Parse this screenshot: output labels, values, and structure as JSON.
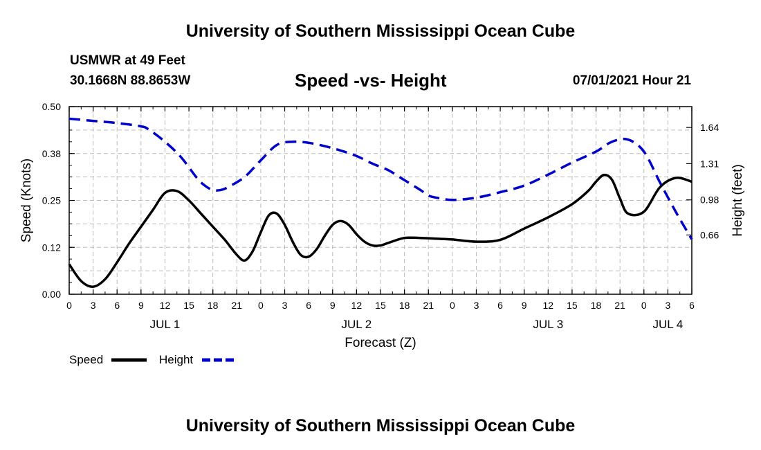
{
  "page": {
    "title_top": "University of Southern Mississippi Ocean Cube",
    "title_bottom": "University of Southern Mississippi Ocean Cube",
    "station": "USMWR at 49 Feet",
    "coords": "30.1668N  88.8653W",
    "chart_title": "Speed -vs- Height",
    "datetime": "07/01/2021 Hour 21"
  },
  "legend": {
    "speed_label": "Speed",
    "height_label": "Height"
  },
  "colors": {
    "speed": "#000000",
    "height": "#0000cc",
    "grid": "#bbbbbb"
  },
  "chart_data": {
    "type": "line",
    "title": "Speed -vs- Height",
    "xlabel": "Forecast (Z)",
    "ylabel": "Speed (Knots)",
    "y2label": "Height (feet)",
    "xlim": [
      0,
      78
    ],
    "ylim": [
      0,
      0.5
    ],
    "y2lim": [
      0.12,
      1.83
    ],
    "x_ticks": [
      0,
      3,
      6,
      9,
      12,
      15,
      18,
      21,
      24,
      27,
      30,
      33,
      36,
      39,
      42,
      45,
      48,
      51,
      54,
      57,
      60,
      63,
      66,
      69,
      72,
      75,
      78
    ],
    "x_tick_labels": [
      "0",
      "3",
      "6",
      "9",
      "12",
      "15",
      "18",
      "21",
      "0",
      "3",
      "6",
      "9",
      "12",
      "15",
      "18",
      "21",
      "0",
      "3",
      "6",
      "9",
      "12",
      "15",
      "18",
      "21",
      "0",
      "3",
      "6"
    ],
    "date_labels": [
      {
        "x": 12,
        "label": "JUL 1"
      },
      {
        "x": 36,
        "label": "JUL 2"
      },
      {
        "x": 60,
        "label": "JUL 3"
      },
      {
        "x": 75,
        "label": "JUL 4"
      }
    ],
    "y_ticks": [
      0,
      0.125,
      0.25,
      0.375,
      0.5
    ],
    "y_tick_labels": [
      "0.00",
      "0.12",
      "0.25",
      "0.38",
      "0.50"
    ],
    "y2_ticks": [
      0.66,
      0.98,
      1.31,
      1.64
    ],
    "y2_tick_labels": [
      "0.66",
      "0.98",
      "1.31",
      "1.64"
    ],
    "series": [
      {
        "name": "Speed",
        "axis": "left",
        "x": [
          0,
          1.5,
          3,
          4.5,
          6,
          7.5,
          9,
          10.5,
          12,
          13.5,
          15,
          16.5,
          18,
          19.5,
          21,
          22,
          23,
          24,
          25,
          26,
          27,
          28,
          29,
          30,
          31,
          32,
          33,
          34,
          35,
          36,
          37,
          38,
          39,
          40,
          42,
          44,
          46,
          48,
          51,
          54,
          57,
          60,
          63,
          65,
          66,
          67,
          68,
          69,
          70,
          72,
          74,
          76,
          78
        ],
        "values": [
          0.08,
          0.035,
          0.02,
          0.04,
          0.085,
          0.135,
          0.18,
          0.225,
          0.27,
          0.275,
          0.25,
          0.215,
          0.18,
          0.145,
          0.105,
          0.09,
          0.115,
          0.165,
          0.21,
          0.215,
          0.185,
          0.14,
          0.105,
          0.1,
          0.12,
          0.155,
          0.185,
          0.195,
          0.185,
          0.16,
          0.14,
          0.13,
          0.13,
          0.137,
          0.15,
          0.15,
          0.148,
          0.146,
          0.14,
          0.145,
          0.175,
          0.205,
          0.24,
          0.275,
          0.3,
          0.318,
          0.305,
          0.255,
          0.215,
          0.22,
          0.285,
          0.31,
          0.3
        ]
      },
      {
        "name": "Height",
        "axis": "right",
        "x": [
          0,
          3,
          6,
          9,
          10,
          12,
          14,
          16,
          17,
          18,
          19,
          20,
          22,
          24,
          26,
          28,
          30,
          32,
          34,
          36,
          38,
          40,
          42,
          44,
          45,
          46,
          48,
          51,
          54,
          57,
          60,
          63,
          66,
          68,
          70,
          72,
          74,
          76,
          78
        ],
        "values": [
          1.72,
          1.7,
          1.68,
          1.65,
          1.62,
          1.51,
          1.37,
          1.18,
          1.11,
          1.07,
          1.07,
          1.1,
          1.19,
          1.34,
          1.48,
          1.51,
          1.5,
          1.47,
          1.43,
          1.38,
          1.31,
          1.25,
          1.16,
          1.07,
          1.02,
          1.0,
          0.98,
          1.0,
          1.05,
          1.11,
          1.21,
          1.32,
          1.42,
          1.51,
          1.53,
          1.42,
          1.14,
          0.87,
          0.62
        ]
      }
    ]
  }
}
